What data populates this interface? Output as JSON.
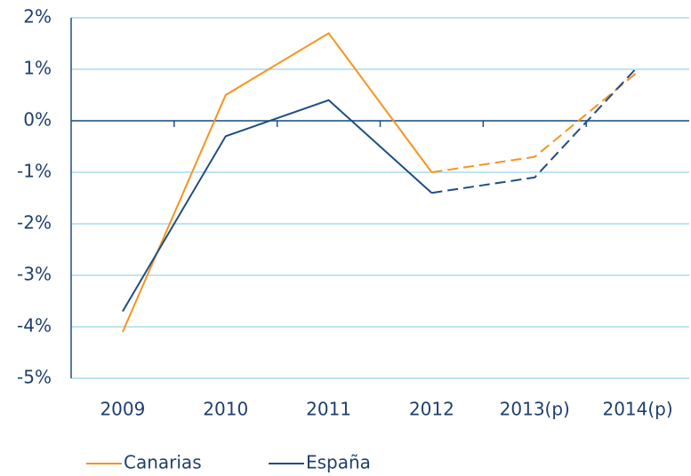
{
  "chart_data": {
    "type": "line",
    "categories": [
      "2009",
      "2010",
      "2011",
      "2012",
      "2013(p)",
      "2014(p)"
    ],
    "series": [
      {
        "name": "Canarias",
        "color": "#f7941d",
        "values": [
          -4.1,
          0.5,
          1.7,
          -1.0,
          -0.7,
          0.95
        ]
      },
      {
        "name": "España",
        "color": "#1f4e85",
        "values": [
          -3.7,
          -0.3,
          0.4,
          -1.4,
          -1.1,
          1.05
        ]
      }
    ],
    "dashed_from": "2012",
    "ylim": [
      -5,
      2
    ],
    "yticks": [
      {
        "value": -5,
        "label": "-5%"
      },
      {
        "value": -4,
        "label": "-4%"
      },
      {
        "value": -3,
        "label": "-3%"
      },
      {
        "value": -2,
        "label": "-2%"
      },
      {
        "value": -1,
        "label": "-1%"
      },
      {
        "value": 0,
        "label": "0%"
      },
      {
        "value": 1,
        "label": "1%"
      },
      {
        "value": 2,
        "label": "2%"
      }
    ],
    "grid": true,
    "legend": "bottom"
  }
}
